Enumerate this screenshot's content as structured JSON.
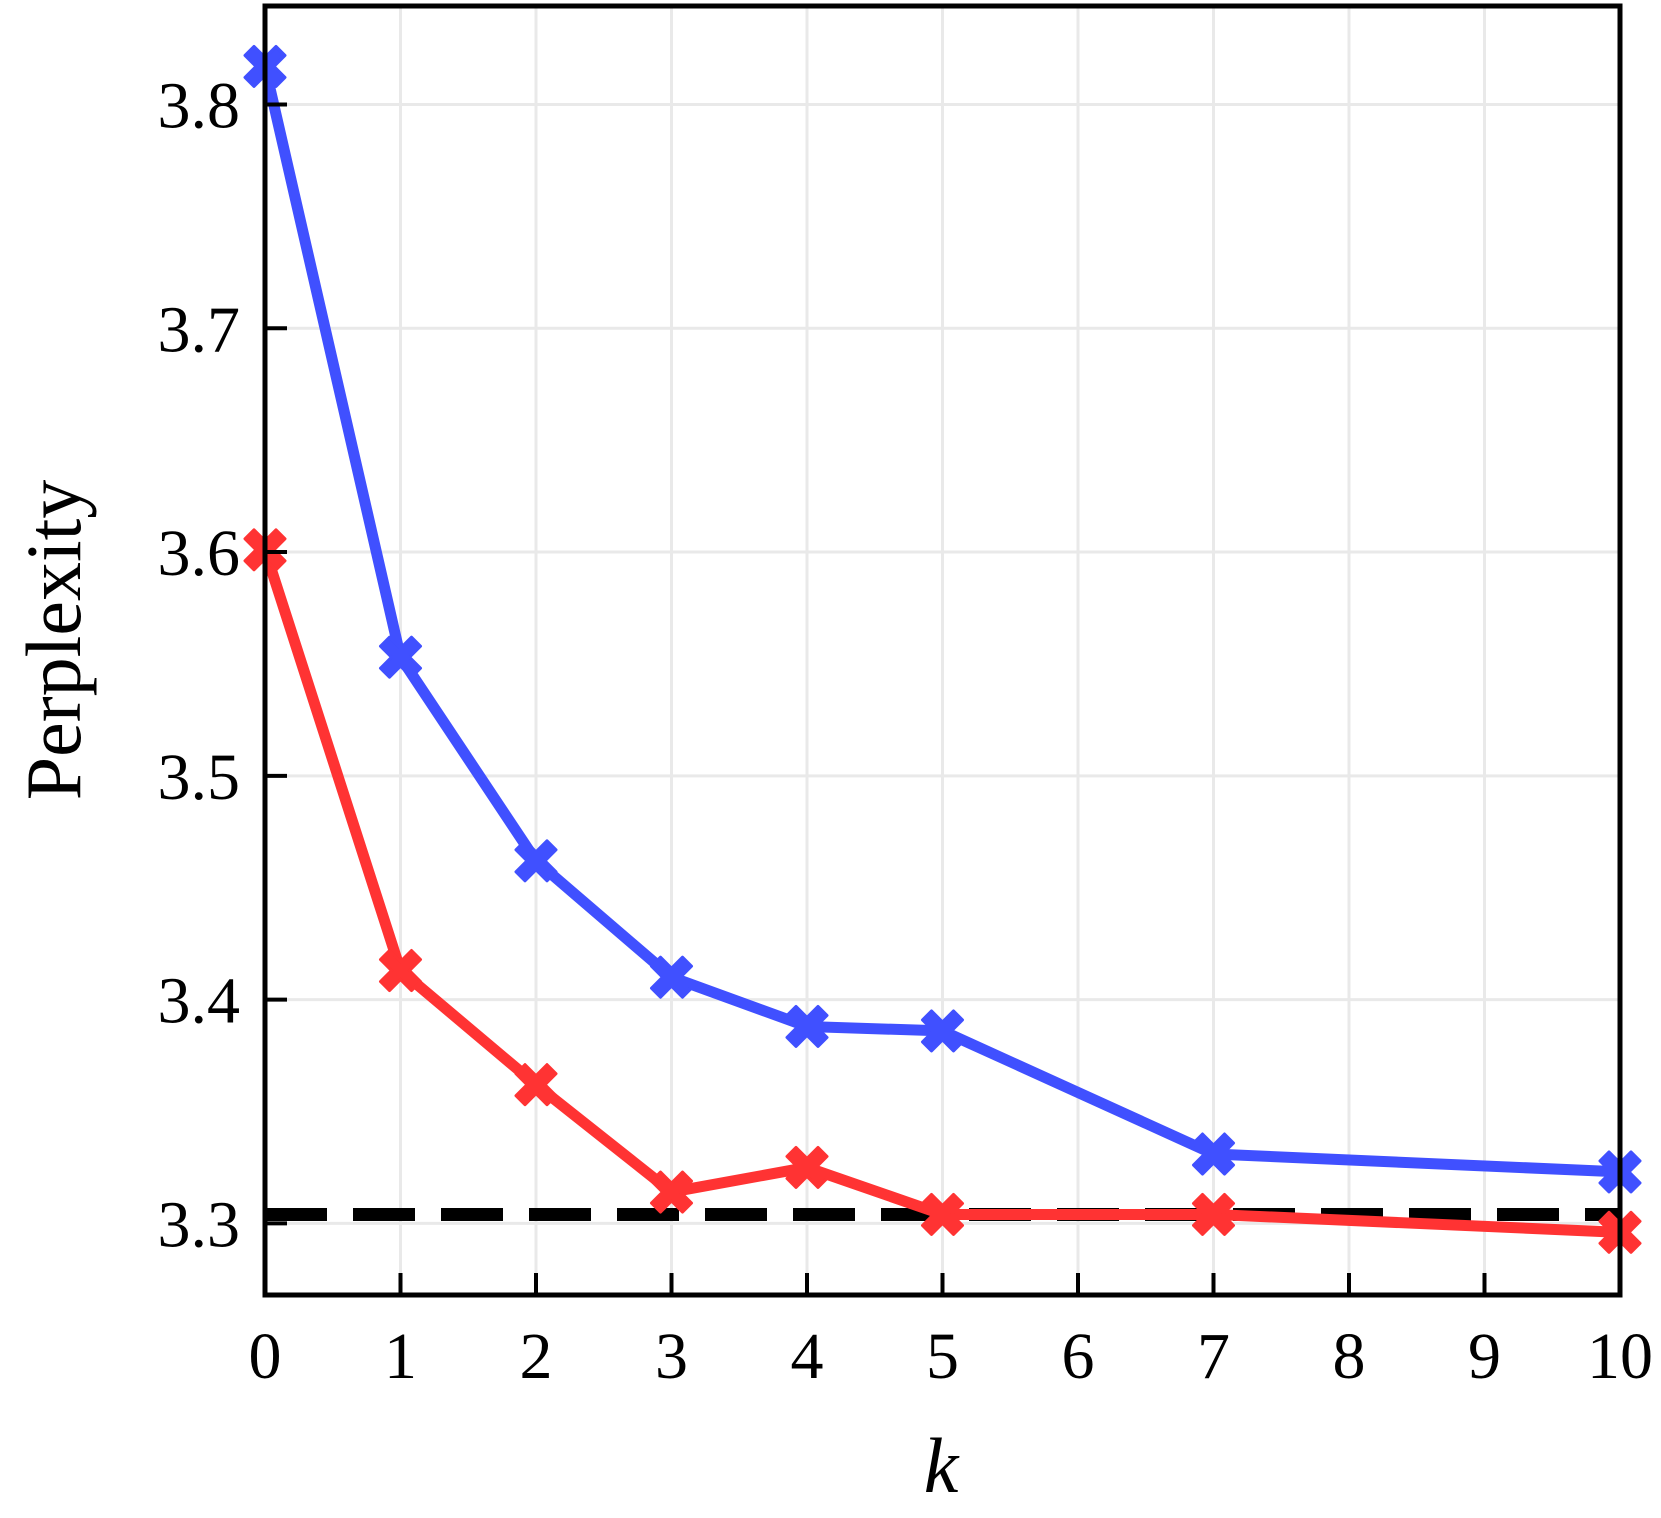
{
  "chart_data": {
    "type": "line",
    "title": "",
    "xlabel": "k",
    "ylabel": "Perplexity",
    "x_ticks": [
      "0",
      "1",
      "2",
      "3",
      "4",
      "5",
      "6",
      "7",
      "8",
      "9",
      "10"
    ],
    "y_ticks": [
      "3.3",
      "3.4",
      "3.5",
      "3.6",
      "3.7",
      "3.8"
    ],
    "xlim": [
      0,
      10
    ],
    "ylim": [
      3.268,
      3.844
    ],
    "grid": true,
    "series": [
      {
        "color": "#4050ff",
        "marker": "X",
        "x": [
          0,
          1,
          2,
          3,
          4,
          5,
          7,
          10
        ],
        "y": [
          3.817,
          3.553,
          3.462,
          3.41,
          3.388,
          3.386,
          3.331,
          3.323
        ]
      },
      {
        "color": "#ff3333",
        "marker": "X",
        "x": [
          0,
          1,
          2,
          3,
          4,
          5,
          7,
          10
        ],
        "y": [
          3.601,
          3.413,
          3.362,
          3.314,
          3.325,
          3.304,
          3.304,
          3.296
        ]
      }
    ],
    "reference_line": {
      "y": 3.304,
      "style": "dashed",
      "color": "#000000"
    }
  }
}
